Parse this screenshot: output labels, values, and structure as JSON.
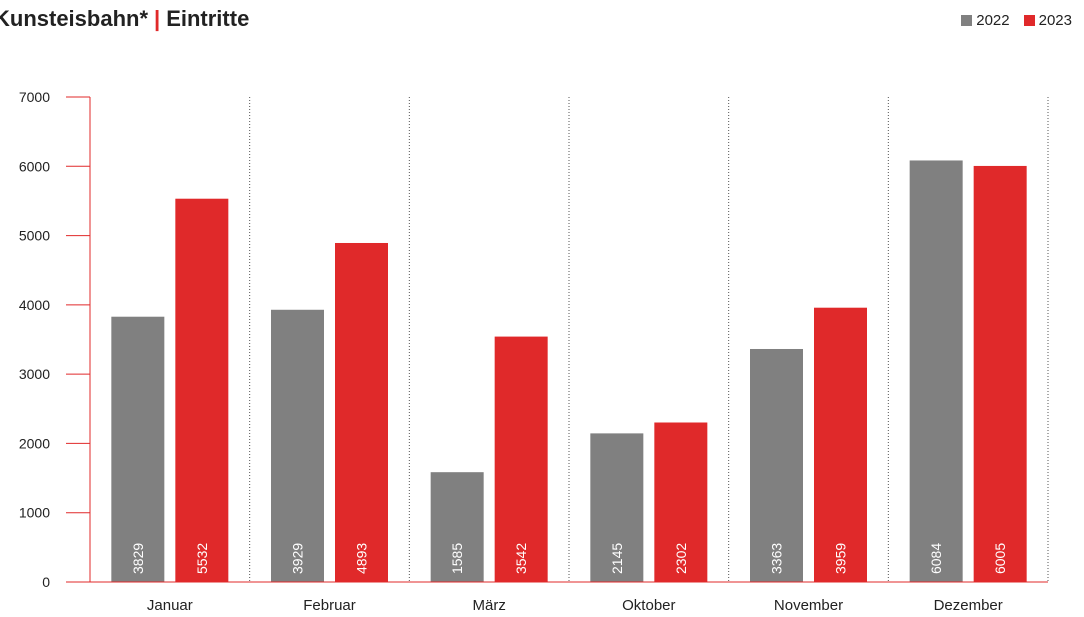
{
  "title": {
    "main": "Kunsteisbahn*",
    "separator": "|",
    "sub": "Eintritte"
  },
  "colors": {
    "series_2022": "#808080",
    "series_2023": "#e0292a",
    "axis": "#e0292a"
  },
  "chart_data": {
    "type": "bar",
    "categories": [
      "Januar",
      "Februar",
      "März",
      "Oktober",
      "November",
      "Dezember"
    ],
    "series": [
      {
        "name": "2022",
        "values": [
          3829,
          3929,
          1585,
          2145,
          3363,
          6084
        ]
      },
      {
        "name": "2023",
        "values": [
          5532,
          4893,
          3542,
          2302,
          3959,
          6005
        ]
      }
    ],
    "yticks": [
      0,
      1000,
      2000,
      3000,
      4000,
      5000,
      6000,
      7000
    ],
    "ylim": [
      0,
      7000
    ],
    "grid": "vertical dotted separators between categories",
    "legend": "top-right",
    "data_labels": "inside bars, rotated vertical"
  }
}
